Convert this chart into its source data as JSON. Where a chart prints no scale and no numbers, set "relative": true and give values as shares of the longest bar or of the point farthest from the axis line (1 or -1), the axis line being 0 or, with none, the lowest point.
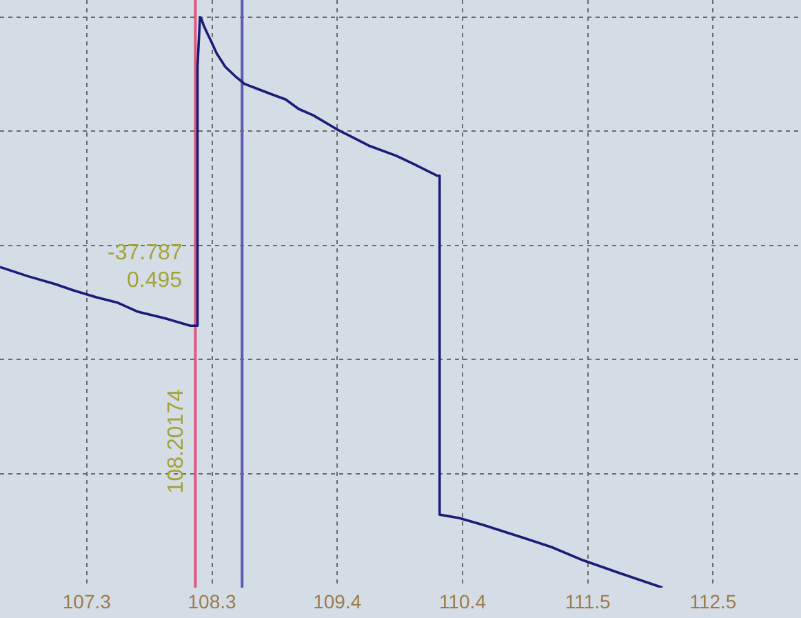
{
  "chart_data": {
    "type": "line",
    "relative": true,
    "color": "#1c1c78",
    "x": [
      106.58,
      106.81,
      107.04,
      107.19,
      107.38,
      107.55,
      107.72,
      107.95,
      108.16,
      108.22,
      108.22,
      108.24,
      108.25,
      108.27,
      108.3,
      108.33,
      108.38,
      108.45,
      108.53,
      108.61,
      108.72,
      108.87,
      108.95,
      109.06,
      109.18,
      109.38,
      109.64,
      109.87,
      110.01,
      110.21,
      110.23,
      110.23,
      110.39,
      110.59,
      110.93,
      111.16,
      111.42,
      111.73,
      112.08
    ],
    "values": [
      0.562,
      0.546,
      0.532,
      0.521,
      0.509,
      0.5,
      0.484,
      0.472,
      0.459,
      0.459,
      0.913,
      1.0,
      0.998,
      0.986,
      0.972,
      0.959,
      0.936,
      0.913,
      0.897,
      0.883,
      0.874,
      0.862,
      0.856,
      0.839,
      0.828,
      0.803,
      0.775,
      0.757,
      0.743,
      0.722,
      0.722,
      0.128,
      0.122,
      0.11,
      0.087,
      0.071,
      0.048,
      0.025,
      0
    ],
    "xlim": [
      106.58,
      113.23
    ],
    "xticks": [
      107.3,
      {
        "value": 108.34,
        "label": "108.3"
      },
      {
        "value": 109.38,
        "label": "109.4"
      },
      {
        "value": 110.42,
        "label": "110.4"
      },
      {
        "value": 111.46,
        "label": "111.5"
      },
      112.5
    ],
    "grid": true,
    "tick_labels": "x",
    "ref_lines": [
      {
        "axis": "x",
        "value": 108.20174,
        "label": "108.20174",
        "color": "#e0587c"
      },
      {
        "axis": "x",
        "value": 108.59,
        "color": "#5b5bb5"
      }
    ],
    "annotations": [
      {
        "text": "-37.787",
        "x": 108.20174,
        "y": 0.459
      },
      {
        "text": "0.495",
        "x": 108.20174,
        "y": 0.459
      }
    ]
  }
}
